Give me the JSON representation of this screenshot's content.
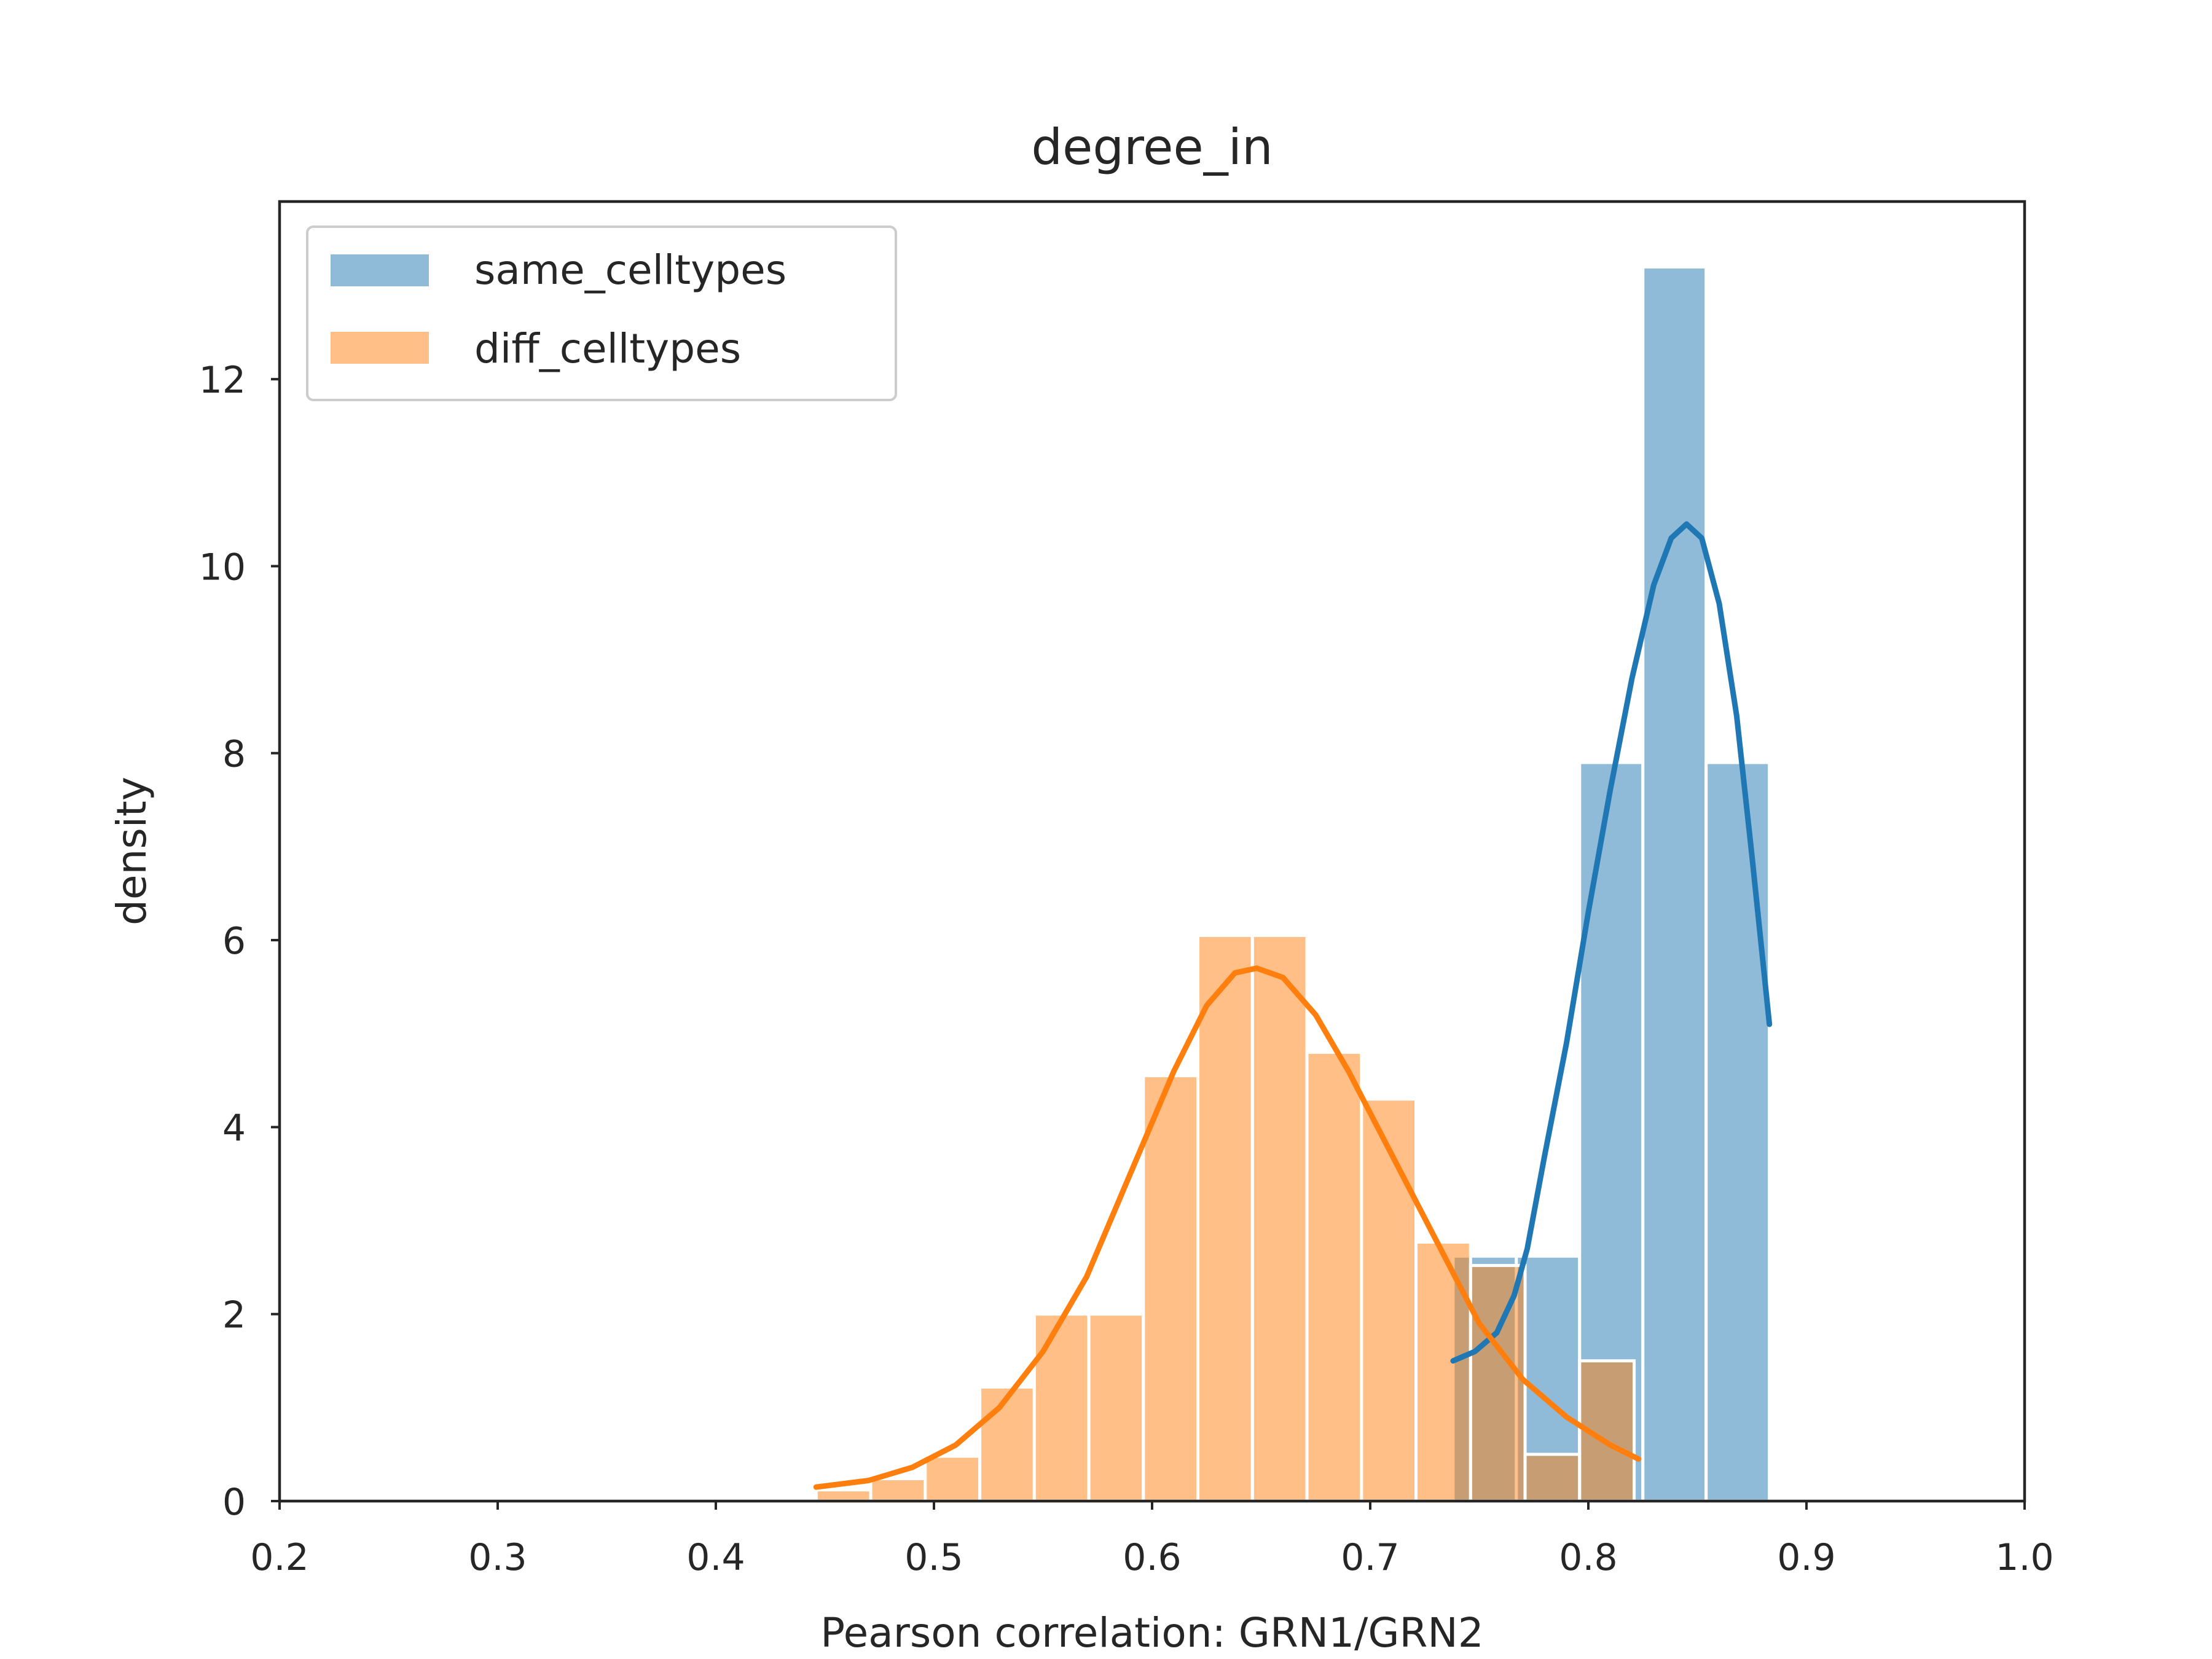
{
  "chart_data": {
    "type": "bar",
    "title": "degree_in",
    "xlabel": "Pearson correlation: GRN1/GRN2",
    "ylabel": "density",
    "xlim": [
      0.2,
      1.0
    ],
    "ylim": [
      0,
      13.9
    ],
    "xticks": [
      "0.2",
      "0.3",
      "0.4",
      "0.5",
      "0.6",
      "0.7",
      "0.8",
      "0.9",
      "1.0"
    ],
    "yticks": [
      "0",
      "2",
      "4",
      "6",
      "8",
      "10",
      "12"
    ],
    "grid": false,
    "legend_position": "top-left",
    "series": [
      {
        "name": "same_celltypes",
        "color": "#1f77b4",
        "bin_edges": [
          0.738,
          0.767,
          0.796,
          0.825,
          0.854,
          0.883
        ],
        "values": [
          2.62,
          2.62,
          7.9,
          13.2,
          7.9
        ],
        "kde": [
          [
            0.738,
            1.5
          ],
          [
            0.748,
            1.6
          ],
          [
            0.758,
            1.8
          ],
          [
            0.766,
            2.2
          ],
          [
            0.772,
            2.7
          ],
          [
            0.78,
            3.7
          ],
          [
            0.79,
            4.9
          ],
          [
            0.8,
            6.3
          ],
          [
            0.81,
            7.6
          ],
          [
            0.82,
            8.8
          ],
          [
            0.83,
            9.8
          ],
          [
            0.838,
            10.3
          ],
          [
            0.845,
            10.45
          ],
          [
            0.852,
            10.3
          ],
          [
            0.86,
            9.6
          ],
          [
            0.868,
            8.4
          ],
          [
            0.875,
            6.9
          ],
          [
            0.883,
            5.1
          ]
        ]
      },
      {
        "name": "diff_celltypes",
        "color": "#ff7f0e",
        "bin_edges": [
          0.446,
          0.471,
          0.496,
          0.521,
          0.546,
          0.571,
          0.596,
          0.621,
          0.646,
          0.671,
          0.696,
          0.721,
          0.746,
          0.771,
          0.796,
          0.821
        ],
        "values": [
          0.12,
          0.24,
          0.48,
          1.22,
          2.0,
          2.0,
          4.55,
          6.05,
          6.05,
          4.8,
          4.3,
          2.77,
          2.52,
          0.5,
          1.5
        ],
        "kde": [
          [
            0.446,
            0.15
          ],
          [
            0.47,
            0.22
          ],
          [
            0.49,
            0.36
          ],
          [
            0.51,
            0.6
          ],
          [
            0.53,
            1.0
          ],
          [
            0.55,
            1.6
          ],
          [
            0.57,
            2.4
          ],
          [
            0.59,
            3.5
          ],
          [
            0.61,
            4.6
          ],
          [
            0.625,
            5.3
          ],
          [
            0.638,
            5.65
          ],
          [
            0.648,
            5.7
          ],
          [
            0.66,
            5.6
          ],
          [
            0.675,
            5.2
          ],
          [
            0.69,
            4.6
          ],
          [
            0.71,
            3.7
          ],
          [
            0.73,
            2.8
          ],
          [
            0.75,
            1.9
          ],
          [
            0.77,
            1.3
          ],
          [
            0.79,
            0.9
          ],
          [
            0.81,
            0.6
          ],
          [
            0.823,
            0.45
          ]
        ]
      }
    ]
  }
}
